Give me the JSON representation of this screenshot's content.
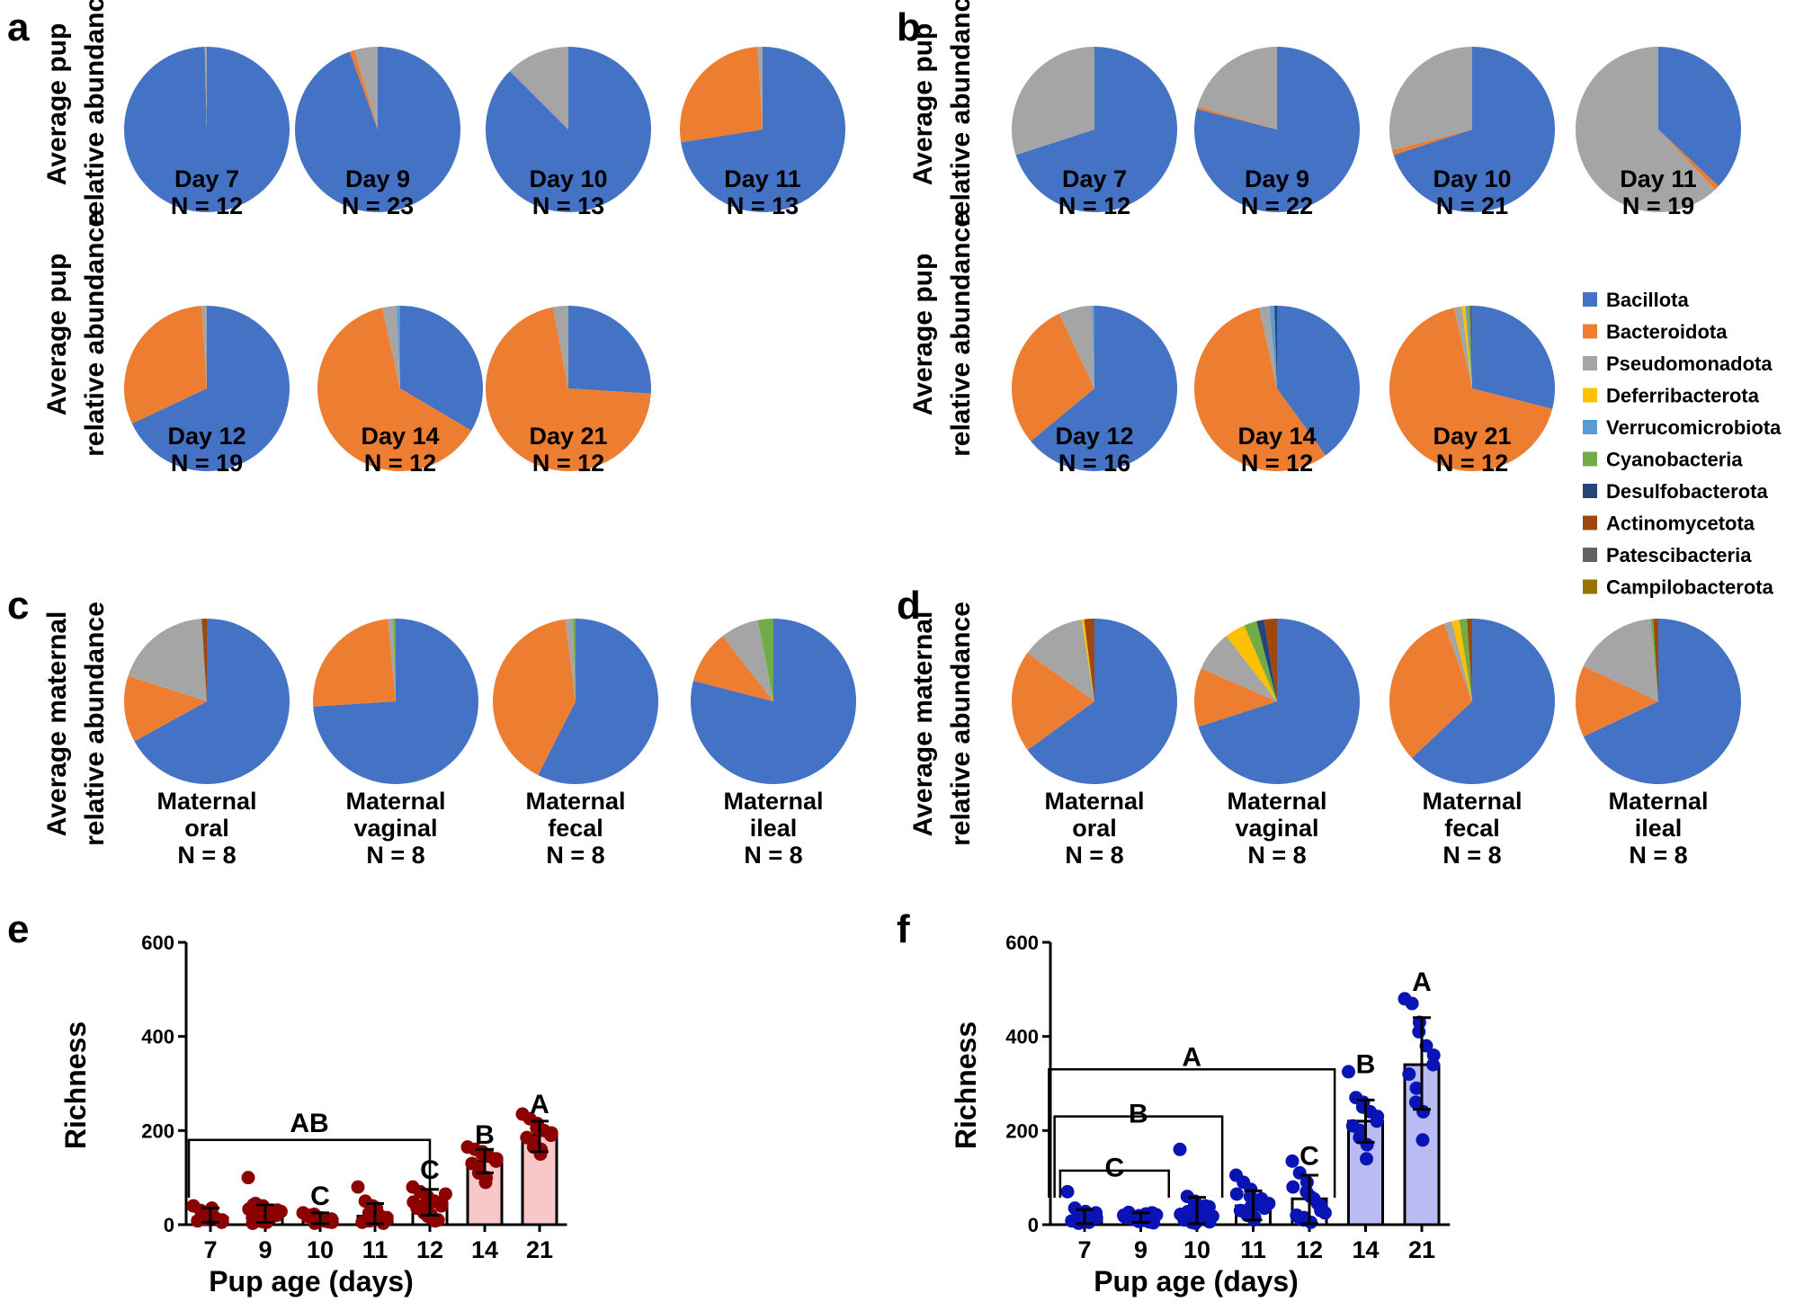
{
  "palette": {
    "Bacillota": "#4472C4",
    "Bacteroidota": "#ED7D31",
    "Pseudomonadota": "#A5A5A5",
    "Deferribacterota": "#FFC000",
    "Verrucomicrobiota": "#5B9BD5",
    "Cyanobacteria": "#70AD47",
    "Desulfobacterota": "#264478",
    "Actinomycetota": "#9E480E",
    "Patescibacteria": "#636363",
    "Campilobacterota": "#997300"
  },
  "legend": {
    "items": [
      "Bacillota",
      "Bacteroidota",
      "Pseudomonadota",
      "Deferribacterota",
      "Verrucomicrobiota",
      "Cyanobacteria",
      "Desulfobacterota",
      "Actinomycetota",
      "Patescibacteria",
      "Campilobacterota"
    ]
  },
  "chart_data": [
    {
      "id": "a",
      "type": "pie",
      "panel": "a",
      "ylabel_line1": "Average pup",
      "ylabel_line2": "relative abundance",
      "pies": [
        {
          "label1": "Day 7",
          "label2": "N = 12",
          "slices": {
            "Bacillota": 99.6,
            "Pseudomonadota": 0.4
          }
        },
        {
          "label1": "Day 9",
          "label2": "N = 23",
          "slices": {
            "Bacillota": 94.5,
            "Bacteroidota": 1.0,
            "Pseudomonadota": 4.5
          }
        },
        {
          "label1": "Day 10",
          "label2": "N = 13",
          "slices": {
            "Bacillota": 87.5,
            "Pseudomonadota": 12.5
          }
        },
        {
          "label1": "Day 11",
          "label2": "N = 13",
          "slices": {
            "Bacillota": 72.5,
            "Bacteroidota": 26.5,
            "Pseudomonadota": 1.0
          }
        }
      ]
    },
    {
      "id": "a2",
      "type": "pie",
      "panel": "a",
      "ylabel_line1": "Average pup",
      "ylabel_line2": "relative abundance",
      "pies": [
        {
          "label1": "Day 12",
          "label2": "N = 19",
          "slices": {
            "Bacillota": 68.0,
            "Bacteroidota": 31.0,
            "Pseudomonadota": 1.0
          }
        },
        {
          "label1": "Day 14",
          "label2": "N = 12",
          "slices": {
            "Bacillota": 33.5,
            "Bacteroidota": 63.0,
            "Pseudomonadota": 2.8,
            "Verrucomicrobiota": 0.7
          }
        },
        {
          "label1": "Day 21",
          "label2": "N = 12",
          "slices": {
            "Bacillota": 26.0,
            "Bacteroidota": 71.0,
            "Pseudomonadota": 3.0
          }
        }
      ]
    },
    {
      "id": "b",
      "type": "pie",
      "panel": "b",
      "ylabel_line1": "Average pup",
      "ylabel_line2": "relative abundance",
      "pies": [
        {
          "label1": "Day 7",
          "label2": "N = 12",
          "slices": {
            "Bacillota": 70.0,
            "Pseudomonadota": 30.0
          }
        },
        {
          "label1": "Day 9",
          "label2": "N = 22",
          "slices": {
            "Bacillota": 79.0,
            "Bacteroidota": 0.5,
            "Pseudomonadota": 20.5
          }
        },
        {
          "label1": "Day 10",
          "label2": "N = 21",
          "slices": {
            "Bacillota": 70.0,
            "Bacteroidota": 1.0,
            "Pseudomonadota": 29.0
          }
        },
        {
          "label1": "Day 11",
          "label2": "N = 19",
          "slices": {
            "Bacillota": 37.0,
            "Bacteroidota": 1.0,
            "Pseudomonadota": 62.0
          }
        }
      ]
    },
    {
      "id": "b2",
      "type": "pie",
      "panel": "b",
      "ylabel_line1": "Average pup",
      "ylabel_line2": "relative abundance",
      "pies": [
        {
          "label1": "Day 12",
          "label2": "N = 16",
          "slices": {
            "Bacillota": 64.0,
            "Bacteroidota": 29.0,
            "Pseudomonadota": 6.5,
            "Verrucomicrobiota": 0.5
          }
        },
        {
          "label1": "Day 14",
          "label2": "N = 12",
          "slices": {
            "Bacillota": 40.0,
            "Bacteroidota": 56.5,
            "Pseudomonadota": 2.0,
            "Verrucomicrobiota": 1.0,
            "Desulfobacterota": 0.5
          }
        },
        {
          "label1": "Day 21",
          "label2": "N = 12",
          "slices": {
            "Bacillota": 29.0,
            "Bacteroidota": 67.5,
            "Pseudomonadota": 1.5,
            "Deferribacterota": 0.7,
            "Cyanobacteria": 0.4,
            "Verrucomicrobiota": 0.4,
            "Patescibacteria": 0.5
          }
        }
      ]
    },
    {
      "id": "c",
      "type": "pie",
      "panel": "c",
      "ylabel_line1": "Average maternal",
      "ylabel_line2": "relative abundance",
      "pies": [
        {
          "label1": "Maternal",
          "label2": "oral",
          "label3": "N = 8",
          "slices": {
            "Bacillota": 67.0,
            "Bacteroidota": 13.0,
            "Pseudomonadota": 19.0,
            "Actinomycetota": 1.0
          }
        },
        {
          "label1": "Maternal",
          "label2": "vaginal",
          "label3": "N = 8",
          "slices": {
            "Bacillota": 74.0,
            "Bacteroidota": 24.5,
            "Pseudomonadota": 1.0,
            "Cyanobacteria": 0.5
          }
        },
        {
          "label1": "Maternal",
          "label2": "fecal",
          "label3": "N = 8",
          "slices": {
            "Bacillota": 57.5,
            "Bacteroidota": 40.5,
            "Pseudomonadota": 1.5,
            "Cyanobacteria": 0.5
          }
        },
        {
          "label1": "Maternal",
          "label2": "ileal",
          "label3": "N = 8",
          "slices": {
            "Bacillota": 79.0,
            "Bacteroidota": 10.5,
            "Pseudomonadota": 7.5,
            "Cyanobacteria": 3.0
          }
        }
      ]
    },
    {
      "id": "d",
      "type": "pie",
      "panel": "d",
      "ylabel_line1": "Average maternal",
      "ylabel_line2": "relative abundance",
      "pies": [
        {
          "label1": "Maternal",
          "label2": "oral",
          "label3": "N = 8",
          "slices": {
            "Bacillota": 65.0,
            "Bacteroidota": 20.0,
            "Pseudomonadota": 12.5,
            "Deferribacterota": 0.5,
            "Actinomycetota": 2.0
          }
        },
        {
          "label1": "Maternal",
          "label2": "vaginal",
          "label3": "N = 8",
          "slices": {
            "Bacillota": 70.0,
            "Bacteroidota": 11.5,
            "Pseudomonadota": 8.0,
            "Deferribacterota": 4.0,
            "Cyanobacteria": 2.5,
            "Desulfobacterota": 1.5,
            "Actinomycetota": 2.5
          }
        },
        {
          "label1": "Maternal",
          "label2": "fecal",
          "label3": "N = 8",
          "slices": {
            "Bacillota": 63.0,
            "Bacteroidota": 31.5,
            "Pseudomonadota": 1.5,
            "Deferribacterota": 1.5,
            "Cyanobacteria": 1.5,
            "Actinomycetota": 1.0
          }
        },
        {
          "label1": "Maternal",
          "label2": "ileal",
          "label3": "N = 8",
          "slices": {
            "Bacillota": 68.0,
            "Bacteroidota": 14.0,
            "Pseudomonadota": 16.5,
            "Cyanobacteria": 0.5,
            "Actinomycetota": 1.0
          }
        }
      ]
    },
    {
      "id": "e",
      "type": "bar",
      "panel": "e",
      "ylabel": "Richness",
      "xlabel": "Pup age (days)",
      "ylim": [
        0,
        600
      ],
      "yticks": [
        0,
        200,
        400,
        600
      ],
      "categories": [
        "7",
        "9",
        "10",
        "11",
        "12",
        "14",
        "21"
      ],
      "means": [
        15,
        18,
        12,
        18,
        45,
        135,
        190
      ],
      "sd_low": [
        5,
        5,
        2,
        2,
        20,
        110,
        155
      ],
      "sd_high": [
        35,
        42,
        25,
        45,
        75,
        160,
        220
      ],
      "highlight": [
        false,
        false,
        false,
        false,
        false,
        true,
        true
      ],
      "points": [
        [
          40,
          30,
          25,
          20,
          15,
          10,
          5,
          8,
          12,
          22,
          35,
          28
        ],
        [
          100,
          45,
          40,
          35,
          30,
          25,
          20,
          15,
          10,
          8,
          5,
          18,
          22,
          28,
          33,
          38,
          12,
          6,
          14,
          26,
          31,
          42,
          3
        ],
        [
          25,
          20,
          15,
          10,
          8,
          5,
          12,
          18,
          3,
          22,
          14,
          9,
          6
        ],
        [
          80,
          50,
          40,
          30,
          20,
          15,
          10,
          5,
          8,
          25,
          35,
          12,
          3
        ],
        [
          80,
          70,
          60,
          55,
          50,
          45,
          40,
          35,
          30,
          25,
          20,
          15,
          10,
          65,
          48,
          38,
          28,
          18,
          8
        ],
        [
          165,
          160,
          155,
          150,
          145,
          140,
          135,
          130,
          120,
          110,
          100,
          90
        ],
        [
          235,
          225,
          215,
          205,
          200,
          195,
          190,
          185,
          175,
          165,
          160,
          150
        ]
      ],
      "letters": [
        {
          "text": "AB",
          "value": 220,
          "bracket": [
            0,
            4
          ],
          "bracket_value": 180
        },
        {
          "text": "C",
          "value": 65,
          "bar": 2
        },
        {
          "text": "C",
          "value": 120,
          "bar": 4
        },
        {
          "text": "B",
          "value": 195,
          "bar": 5
        },
        {
          "text": "A",
          "value": 260,
          "bar": 6
        }
      ]
    },
    {
      "id": "f",
      "type": "bar",
      "panel": "f",
      "ylabel": "Richness",
      "xlabel": "Pup age (days)",
      "ylim": [
        0,
        600
      ],
      "yticks": [
        0,
        200,
        400,
        600
      ],
      "categories": [
        "7",
        "9",
        "10",
        "11",
        "12",
        "14",
        "21"
      ],
      "means": [
        15,
        15,
        28,
        40,
        55,
        220,
        340
      ],
      "sd_low": [
        2,
        5,
        2,
        10,
        2,
        175,
        245
      ],
      "sd_high": [
        32,
        25,
        58,
        72,
        105,
        265,
        440
      ],
      "highlight": [
        false,
        false,
        false,
        false,
        false,
        true,
        true
      ],
      "points": [
        [
          70,
          35,
          20,
          10,
          5,
          15,
          25,
          8,
          12,
          3,
          18,
          28
        ],
        [
          20,
          18,
          15,
          12,
          10,
          8,
          25,
          22,
          16,
          14,
          11,
          9,
          6,
          21,
          17,
          13,
          19,
          7,
          23,
          4,
          24,
          26
        ],
        [
          160,
          60,
          45,
          35,
          25,
          20,
          15,
          10,
          5,
          8,
          12,
          30,
          40,
          18,
          22,
          28,
          3,
          50,
          14,
          6,
          38
        ],
        [
          105,
          90,
          75,
          60,
          50,
          40,
          35,
          30,
          25,
          20,
          15,
          10,
          55,
          45,
          65,
          28,
          18,
          38,
          42
        ],
        [
          135,
          110,
          90,
          70,
          55,
          40,
          30,
          20,
          15,
          10,
          5,
          60,
          45,
          25,
          80,
          12
        ],
        [
          325,
          270,
          260,
          250,
          240,
          230,
          220,
          210,
          200,
          185,
          170,
          140
        ],
        [
          480,
          470,
          430,
          410,
          380,
          360,
          340,
          320,
          290,
          260,
          240,
          180
        ]
      ],
      "letters": [
        {
          "text": "A",
          "value": 360,
          "bracket": [
            -0.25,
            4.45
          ],
          "bracket_value": 330
        },
        {
          "text": "B",
          "value": 240,
          "bracket": [
            -0.15,
            2.45
          ],
          "bracket_value": 230
        },
        {
          "text": "C",
          "value": 125,
          "bracket": [
            -0.05,
            1.5
          ],
          "bracket_value": 115
        },
        {
          "text": "C",
          "value": 150,
          "bar": 4
        },
        {
          "text": "B",
          "value": 345,
          "bar": 5
        },
        {
          "text": "A",
          "value": 520,
          "bar": 6
        }
      ]
    }
  ]
}
